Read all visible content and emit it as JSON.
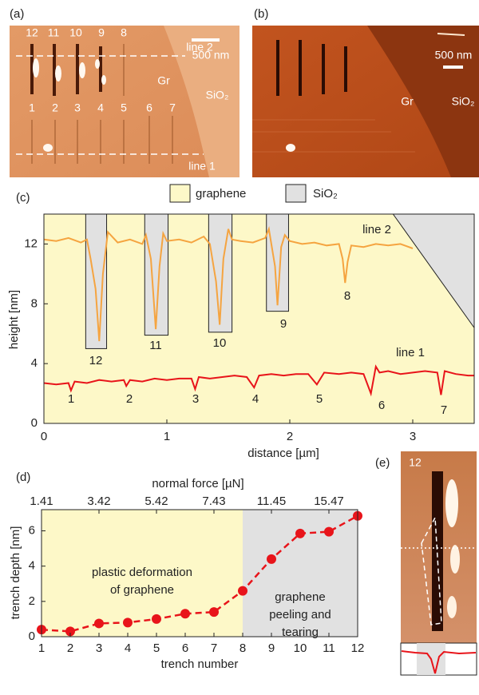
{
  "image_panels": [
    {
      "label": "(a)",
      "texts": [
        "12",
        "11",
        "10",
        "9",
        "8",
        "line 2",
        "500 nm",
        "Gr",
        "SiO₂",
        "1",
        "2",
        "3",
        "4",
        "5",
        "6",
        "7",
        "line 1"
      ]
    },
    {
      "label": "(b)",
      "texts": [
        "500 nm",
        "Gr",
        "SiO₂"
      ]
    },
    {
      "label": "(e)",
      "texts": [
        "12"
      ]
    }
  ],
  "chart_data": [
    {
      "type": "line",
      "panel_label": "(c)",
      "xlabel": "distance [µm]",
      "ylabel": "height [nm]",
      "xlim": [
        0,
        3.5
      ],
      "ylim": [
        0,
        14
      ],
      "xticks": [
        0,
        1,
        2,
        3
      ],
      "yticks": [
        0,
        4,
        8,
        12
      ],
      "legend": [
        {
          "name": "graphene",
          "color": "#fdf8c8"
        },
        {
          "name": "SiO₂",
          "color": "#e1e1e1"
        }
      ],
      "sio2_trenches": [
        {
          "x0": 0.34,
          "x1": 0.51,
          "y0": 5.0
        },
        {
          "x0": 0.82,
          "x1": 1.01,
          "y0": 5.9
        },
        {
          "x0": 1.34,
          "x1": 1.53,
          "y0": 6.1
        },
        {
          "x0": 1.81,
          "x1": 1.99,
          "y0": 7.5
        }
      ],
      "sio2_edge": {
        "x": [
          2.84,
          3.5
        ],
        "y": [
          14,
          6.4
        ]
      },
      "series": [
        {
          "name": "line 2",
          "color": "#f5a440",
          "x": [
            0,
            0.1,
            0.2,
            0.3,
            0.35,
            0.38,
            0.42,
            0.45,
            0.48,
            0.52,
            0.6,
            0.7,
            0.8,
            0.83,
            0.87,
            0.91,
            0.94,
            0.97,
            1.0,
            1.1,
            1.2,
            1.3,
            1.35,
            1.4,
            1.43,
            1.46,
            1.5,
            1.53,
            1.6,
            1.7,
            1.8,
            1.83,
            1.88,
            1.9,
            1.93,
            1.96,
            2.0,
            2.1,
            2.2,
            2.3,
            2.4,
            2.43,
            2.45,
            2.47,
            2.5,
            2.6,
            2.7,
            2.8,
            2.9,
            3.0
          ],
          "values": [
            12.3,
            12.2,
            12.4,
            12.1,
            12.3,
            11.0,
            9.0,
            5.5,
            10.0,
            12.8,
            12.1,
            12.3,
            12.0,
            12.6,
            11.0,
            6.3,
            10.5,
            12.7,
            12.2,
            12.3,
            12.1,
            12.5,
            12.0,
            9.5,
            6.6,
            11.0,
            13.0,
            12.3,
            12.2,
            12.1,
            12.4,
            13.0,
            10.5,
            7.9,
            11.8,
            12.6,
            12.2,
            12.0,
            12.1,
            11.9,
            12.0,
            11.0,
            9.4,
            10.8,
            11.9,
            11.8,
            12.0,
            11.9,
            12.0,
            11.7
          ]
        },
        {
          "name": "line 1",
          "color": "#e8141a",
          "x": [
            0,
            0.1,
            0.2,
            0.22,
            0.25,
            0.35,
            0.45,
            0.55,
            0.65,
            0.67,
            0.7,
            0.8,
            0.9,
            1.0,
            1.1,
            1.2,
            1.23,
            1.26,
            1.35,
            1.45,
            1.55,
            1.65,
            1.71,
            1.75,
            1.85,
            1.95,
            2.05,
            2.15,
            2.22,
            2.28,
            2.4,
            2.5,
            2.6,
            2.66,
            2.7,
            2.73,
            2.8,
            2.9,
            3.0,
            3.1,
            3.2,
            3.23,
            3.26,
            3.35,
            3.45,
            3.5
          ],
          "values": [
            2.7,
            2.6,
            2.7,
            2.2,
            2.8,
            2.7,
            2.9,
            2.8,
            2.9,
            2.5,
            2.9,
            2.8,
            3.0,
            2.9,
            3.0,
            3.0,
            2.3,
            3.1,
            3.0,
            3.1,
            3.2,
            3.1,
            2.4,
            3.2,
            3.3,
            3.2,
            3.3,
            3.3,
            2.6,
            3.4,
            3.3,
            3.4,
            3.3,
            2.0,
            3.8,
            3.4,
            3.5,
            3.3,
            3.4,
            3.5,
            3.4,
            1.9,
            3.5,
            3.3,
            3.2,
            3.2
          ]
        }
      ],
      "annotations": [
        "12",
        "11",
        "10",
        "9",
        "8",
        "1",
        "2",
        "3",
        "4",
        "5",
        "6",
        "7"
      ]
    },
    {
      "type": "line",
      "panel_label": "(d)",
      "xlabel": "trench number",
      "ylabel": "trench depth [nm]",
      "x2label": "normal force [µN]",
      "xlim": [
        1,
        12
      ],
      "ylim": [
        0,
        7.2
      ],
      "xticks": [
        1,
        2,
        3,
        4,
        5,
        6,
        7,
        8,
        9,
        10,
        11,
        12
      ],
      "yticks": [
        0,
        2,
        4,
        6
      ],
      "x2ticks": [
        {
          "value": 1,
          "label": "1.41"
        },
        {
          "value": 3,
          "label": "3.42"
        },
        {
          "value": 5,
          "label": "5.42"
        },
        {
          "value": 7,
          "label": "7.43"
        },
        {
          "value": 9,
          "label": "11.45"
        },
        {
          "value": 11,
          "label": "15.47"
        }
      ],
      "regions": [
        {
          "x0": 1,
          "x1": 8,
          "color": "#fdf8c8",
          "text": [
            "plastic deformation",
            "of graphene"
          ]
        },
        {
          "x0": 8,
          "x1": 12,
          "color": "#e1e1e1",
          "text": [
            "graphene",
            "peeling and",
            "tearing"
          ]
        }
      ],
      "series": [
        {
          "color": "#e8141a",
          "x": [
            1,
            2,
            3,
            4,
            5,
            6,
            7,
            8,
            9,
            10,
            11,
            12
          ],
          "values": [
            0.4,
            0.3,
            0.75,
            0.8,
            1.0,
            1.3,
            1.4,
            2.6,
            4.4,
            5.85,
            5.95,
            6.85
          ]
        }
      ]
    }
  ]
}
